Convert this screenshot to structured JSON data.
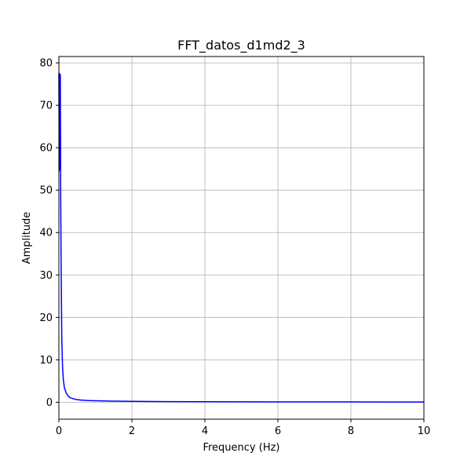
{
  "chart_data": {
    "type": "line",
    "title": "FFT_datos_d1md2_3",
    "xlabel": "Frequency (Hz)",
    "ylabel": "Amplitude",
    "xlim": [
      0,
      10
    ],
    "ylim": [
      -4,
      81.5
    ],
    "xticks": [
      0,
      2,
      4,
      6,
      8,
      10
    ],
    "yticks": [
      0,
      10,
      20,
      30,
      40,
      50,
      60,
      70,
      80
    ],
    "grid": true,
    "series": [
      {
        "color": "#0000ff",
        "x": [
          0.0,
          0.01,
          0.02,
          0.03,
          0.04,
          0.05,
          0.06,
          0.07,
          0.08,
          0.1,
          0.12,
          0.15,
          0.2,
          0.25,
          0.3,
          0.4,
          0.5,
          0.6,
          0.8,
          1.0,
          1.2,
          1.5,
          2.0,
          3.0,
          4.0,
          5.0,
          6.0,
          7.0,
          8.0,
          9.0,
          10.0
        ],
        "y": [
          77.5,
          54.5,
          77.5,
          55,
          77.2,
          48,
          35,
          24,
          15,
          8.5,
          5.5,
          3.5,
          2.2,
          1.5,
          1.1,
          0.8,
          0.6,
          0.5,
          0.4,
          0.35,
          0.3,
          0.25,
          0.2,
          0.15,
          0.12,
          0.1,
          0.08,
          0.07,
          0.06,
          0.05,
          0.05
        ]
      }
    ]
  }
}
